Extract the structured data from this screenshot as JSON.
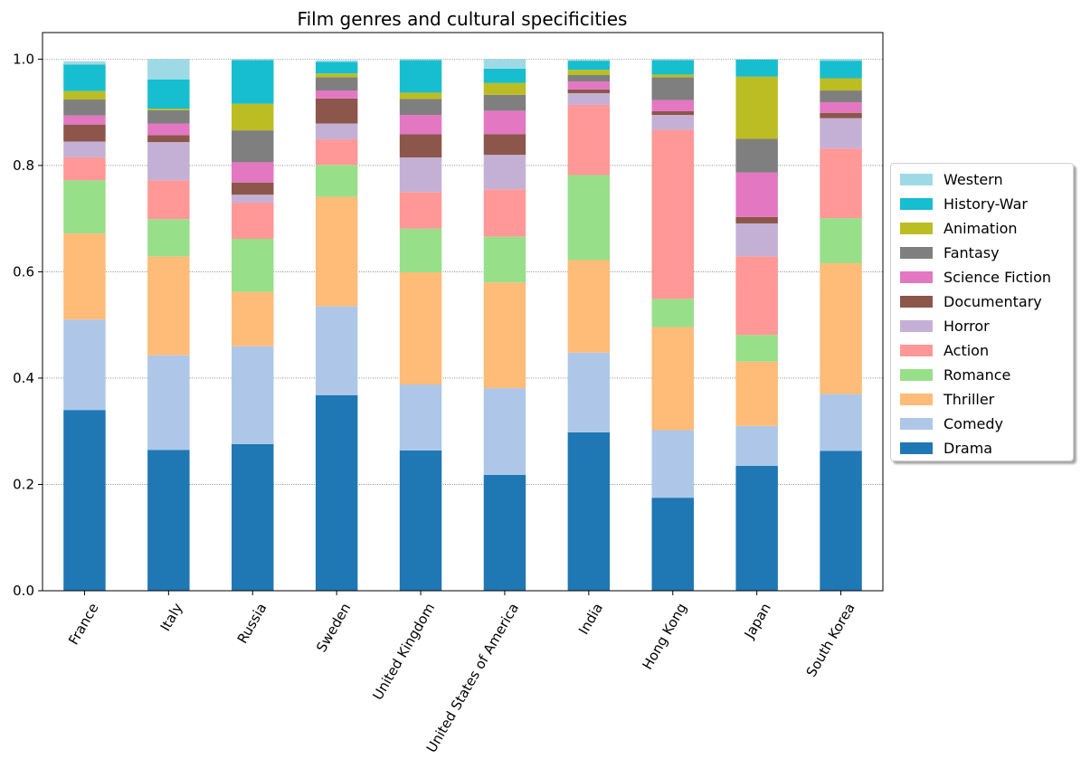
{
  "chart_data": {
    "type": "bar",
    "stacked": true,
    "title": "Film genres and cultural specificities",
    "xlabel": "",
    "ylabel": "",
    "ylim": [
      0,
      1.05
    ],
    "yticks": [
      "0.0",
      "0.2",
      "0.4",
      "0.6",
      "0.8",
      "1.0"
    ],
    "ytick_values": [
      0,
      0.2,
      0.4,
      0.6,
      0.8,
      1.0
    ],
    "grid": "horizontal dotted",
    "legend_position": "right",
    "categories": [
      "France",
      "Italy",
      "Russia",
      "Sweden",
      "United Kingdom",
      "United States of America",
      "India",
      "Hong Kong",
      "Japan",
      "South Korea"
    ],
    "series": [
      {
        "name": "Drama",
        "color": "#1f77b4",
        "values": [
          0.34,
          0.265,
          0.276,
          0.368,
          0.264,
          0.218,
          0.298,
          0.175,
          0.235,
          0.263
        ]
      },
      {
        "name": "Comedy",
        "color": "#aec7e8",
        "values": [
          0.17,
          0.178,
          0.184,
          0.167,
          0.124,
          0.163,
          0.15,
          0.127,
          0.075,
          0.107
        ]
      },
      {
        "name": "Thriller",
        "color": "#ffbb78",
        "values": [
          0.162,
          0.186,
          0.102,
          0.206,
          0.211,
          0.199,
          0.174,
          0.194,
          0.121,
          0.246
        ]
      },
      {
        "name": "Romance",
        "color": "#98df8a",
        "values": [
          0.1,
          0.07,
          0.1,
          0.06,
          0.082,
          0.086,
          0.16,
          0.053,
          0.05,
          0.085
        ]
      },
      {
        "name": "Action",
        "color": "#ff9896",
        "values": [
          0.043,
          0.073,
          0.068,
          0.048,
          0.069,
          0.089,
          0.132,
          0.318,
          0.148,
          0.131
        ]
      },
      {
        "name": "Horror",
        "color": "#c5b0d5",
        "values": [
          0.03,
          0.072,
          0.015,
          0.03,
          0.065,
          0.065,
          0.022,
          0.028,
          0.062,
          0.057
        ]
      },
      {
        "name": "Documentary",
        "color": "#8c564b",
        "values": [
          0.032,
          0.013,
          0.023,
          0.047,
          0.044,
          0.039,
          0.007,
          0.007,
          0.012,
          0.01
        ]
      },
      {
        "name": "Science Fiction",
        "color": "#e377c2",
        "values": [
          0.017,
          0.022,
          0.038,
          0.015,
          0.036,
          0.044,
          0.015,
          0.021,
          0.084,
          0.02
        ]
      },
      {
        "name": "Fantasy",
        "color": "#7f7f7f",
        "values": [
          0.03,
          0.025,
          0.06,
          0.025,
          0.03,
          0.03,
          0.012,
          0.043,
          0.063,
          0.022
        ]
      },
      {
        "name": "Animation",
        "color": "#bcbd22",
        "values": [
          0.016,
          0.003,
          0.05,
          0.007,
          0.012,
          0.022,
          0.01,
          0.005,
          0.117,
          0.023
        ]
      },
      {
        "name": "History-War",
        "color": "#17becf",
        "values": [
          0.05,
          0.055,
          0.082,
          0.022,
          0.061,
          0.027,
          0.017,
          0.027,
          0.032,
          0.033
        ]
      },
      {
        "name": "Western",
        "color": "#9edae5",
        "values": [
          0.006,
          0.038,
          0.002,
          0.003,
          0.002,
          0.018,
          0.002,
          0.002,
          0.001,
          0.003
        ]
      }
    ]
  }
}
